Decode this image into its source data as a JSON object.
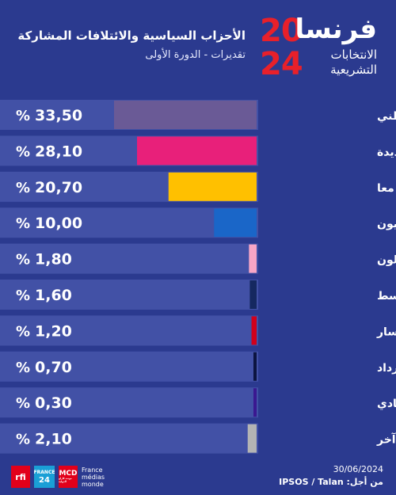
{
  "header": {
    "logo_word": "فرنسا",
    "logo_year_top": "20",
    "logo_year_bottom": "24",
    "logo_sub_1": "الانتخابات",
    "logo_sub_2": "التشريعية"
  },
  "chart_data": {
    "type": "bar",
    "orientation": "horizontal",
    "title": "الأحزاب السياسية والائتلافات المشاركة",
    "subtitle": "تقديرات - الدورة الأولى",
    "categories": [
      "التجمع الوطني",
      "الجبهة الشعبية الجديدة",
      "معا",
      "الجمهوريون",
      "يساريون مستقلون",
      "تيارات الوسط",
      "أقصى اليسار",
      "الاسترداد",
      "قائمة اليمين السيادي",
      "آخر"
    ],
    "values": [
      33.5,
      28.1,
      20.7,
      10.0,
      1.8,
      1.6,
      1.2,
      0.7,
      0.3,
      2.1
    ],
    "value_labels": [
      "33,50",
      "28,10",
      "20,70",
      "10,00",
      "1,80",
      "1,60",
      "1,20",
      "0,70",
      "0,30",
      "2,10"
    ],
    "unit": "%",
    "colors": [
      "#6a5a96",
      "#e8207a",
      "#ffc000",
      "#1a66c8",
      "#f7a6c6",
      "#152860",
      "#d1001c",
      "#0c1440",
      "#3a1890",
      "#b4b4b4"
    ],
    "xlim": [
      0,
      33.5
    ]
  },
  "footer": {
    "date": "30/06/2024",
    "source": "من أجل: IPSOS / Talan",
    "logo_rfi": "rfi",
    "logo_f24_1": "FRANCE",
    "logo_f24_2": "24",
    "logo_mcd_1": "MCD",
    "logo_mcd_2": "مونت كارلو الدولية",
    "logo_fmm_1": "France",
    "logo_fmm_2": "médias",
    "logo_fmm_3": "monde"
  }
}
